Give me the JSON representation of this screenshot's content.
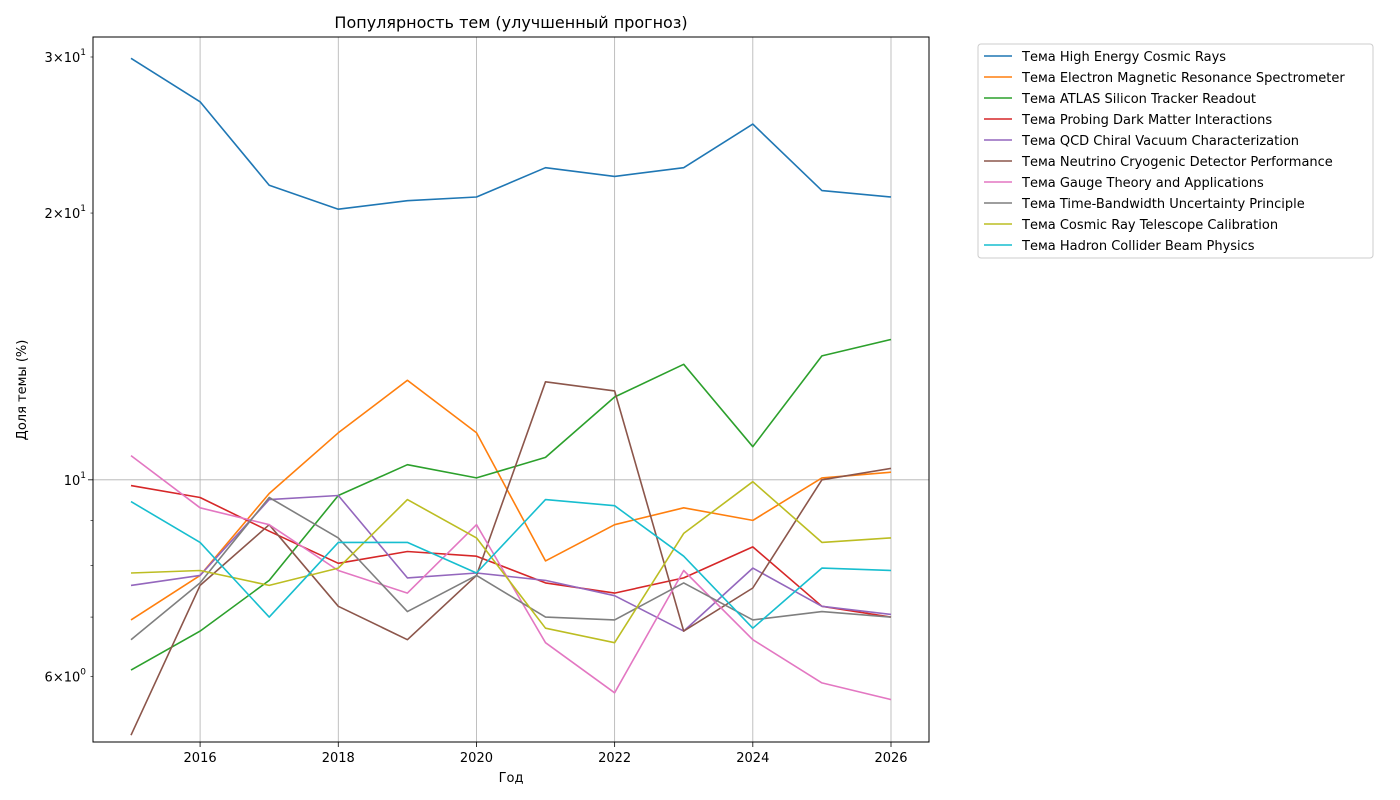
{
  "chart_data": {
    "type": "line",
    "title": "Популярность тем (улучшенный прогноз)",
    "xlabel": "Год",
    "ylabel": "Доля темы (%)",
    "xlim": [
      2014.45,
      2026.55
    ],
    "ylim": [
      5.06,
      31.6
    ],
    "yscale": "log",
    "grid": "major-x and major-y",
    "legend_position": "outside-top-right",
    "x": [
      2015,
      2016,
      2017,
      2018,
      2019,
      2020,
      2021,
      2022,
      2023,
      2024,
      2025,
      2026
    ],
    "x_ticks": [
      {
        "value": 2016,
        "label": "2016"
      },
      {
        "value": 2018,
        "label": "2018"
      },
      {
        "value": 2020,
        "label": "2020"
      },
      {
        "value": 2022,
        "label": "2022"
      },
      {
        "value": 2024,
        "label": "2024"
      },
      {
        "value": 2026,
        "label": "2026"
      }
    ],
    "y_ticks": [
      {
        "value": 6,
        "base": "6",
        "exp": "0"
      },
      {
        "value": 10,
        "base": "10",
        "exp": "1"
      },
      {
        "value": 20,
        "base": "2",
        "exp": "1"
      },
      {
        "value": 30,
        "base": "3",
        "exp": "1"
      }
    ],
    "y_minor_ticks": [
      6,
      7,
      8,
      9,
      20,
      30
    ],
    "series": [
      {
        "name": "Тема High Energy Cosmic Rays",
        "color": "#1f77b4",
        "values": [
          29.9,
          26.7,
          21.5,
          20.2,
          20.65,
          20.85,
          22.5,
          22.0,
          22.5,
          25.2,
          21.2,
          20.85
        ]
      },
      {
        "name": "Тема Electron Magnetic Resonance Spectrometer",
        "color": "#ff7f0e",
        "values": [
          6.95,
          7.8,
          9.65,
          11.3,
          12.95,
          11.3,
          8.1,
          8.9,
          9.3,
          9.0,
          10.05,
          10.2
        ]
      },
      {
        "name": "Тема ATLAS Silicon Tracker Readout",
        "color": "#2ca02c",
        "values": [
          6.1,
          6.75,
          7.7,
          9.6,
          10.4,
          10.05,
          10.6,
          12.4,
          13.5,
          10.9,
          13.8,
          14.4
        ]
      },
      {
        "name": "Тема Probing Dark Matter Interactions",
        "color": "#d62728",
        "values": [
          9.85,
          9.55,
          8.75,
          8.05,
          8.3,
          8.2,
          7.65,
          7.45,
          7.75,
          8.4,
          7.2,
          7.0
        ]
      },
      {
        "name": "Тема QCD Chiral Vacuum Characterization",
        "color": "#9467bd",
        "values": [
          7.6,
          7.8,
          9.5,
          9.6,
          7.75,
          7.85,
          7.7,
          7.4,
          6.75,
          7.95,
          7.2,
          7.05
        ]
      },
      {
        "name": "Тема Neutrino Cryogenic Detector Performance",
        "color": "#8c564b",
        "values": [
          5.15,
          7.6,
          8.9,
          7.2,
          6.6,
          7.8,
          12.9,
          12.6,
          6.75,
          7.55,
          10.0,
          10.3
        ]
      },
      {
        "name": "Тема Gauge Theory and Applications",
        "color": "#e377c2",
        "values": [
          10.65,
          9.3,
          8.9,
          7.9,
          7.45,
          8.9,
          6.55,
          5.75,
          7.9,
          6.6,
          5.9,
          5.65
        ]
      },
      {
        "name": "Тема Time-Bandwidth Uncertainty Principle",
        "color": "#7f7f7f",
        "values": [
          6.6,
          7.65,
          9.55,
          8.6,
          7.1,
          7.8,
          7.0,
          6.95,
          7.65,
          6.95,
          7.1,
          7.0
        ]
      },
      {
        "name": "Тема Cosmic Ray Telescope Calibration",
        "color": "#bcbd22",
        "values": [
          7.85,
          7.9,
          7.6,
          7.95,
          9.5,
          8.6,
          6.8,
          6.55,
          8.7,
          9.95,
          8.5,
          8.6
        ]
      },
      {
        "name": "Тема Hadron Collider Beam Physics",
        "color": "#17becf",
        "values": [
          9.45,
          8.5,
          7.0,
          8.5,
          8.5,
          7.85,
          9.5,
          9.35,
          8.2,
          6.8,
          7.95,
          7.9
        ]
      }
    ]
  }
}
